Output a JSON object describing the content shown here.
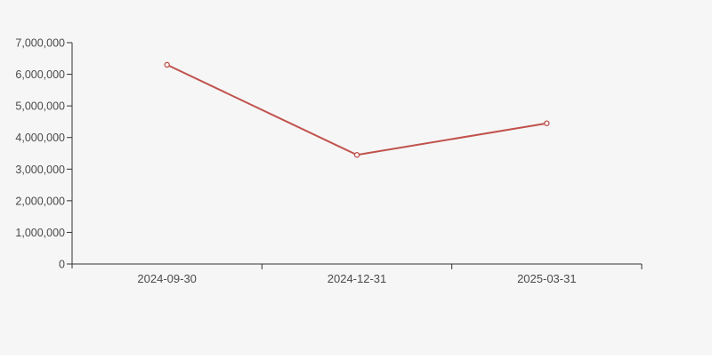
{
  "chart_data": {
    "type": "line",
    "title": "",
    "categories": [
      "2024-09-30",
      "2024-12-31",
      "2025-03-31"
    ],
    "series": [
      {
        "name": "value",
        "values": [
          6300000,
          3450000,
          4450000
        ]
      }
    ],
    "xlabel": "",
    "ylabel": "",
    "ylim": [
      0,
      7000000
    ],
    "y_tick_step": 1000000,
    "y_tick_labels": [
      "0",
      "1,000,000",
      "2,000,000",
      "3,000,000",
      "4,000,000",
      "5,000,000",
      "6,000,000",
      "7,000,000"
    ],
    "grid": false,
    "legend_position": "none",
    "marker": "open-circle",
    "colors": {
      "line": "#c1524d",
      "marker_fill": "#f6f6f6",
      "background": "#f6f6f6",
      "axis": "#333333",
      "tick_label": "#4a4a4a"
    }
  }
}
